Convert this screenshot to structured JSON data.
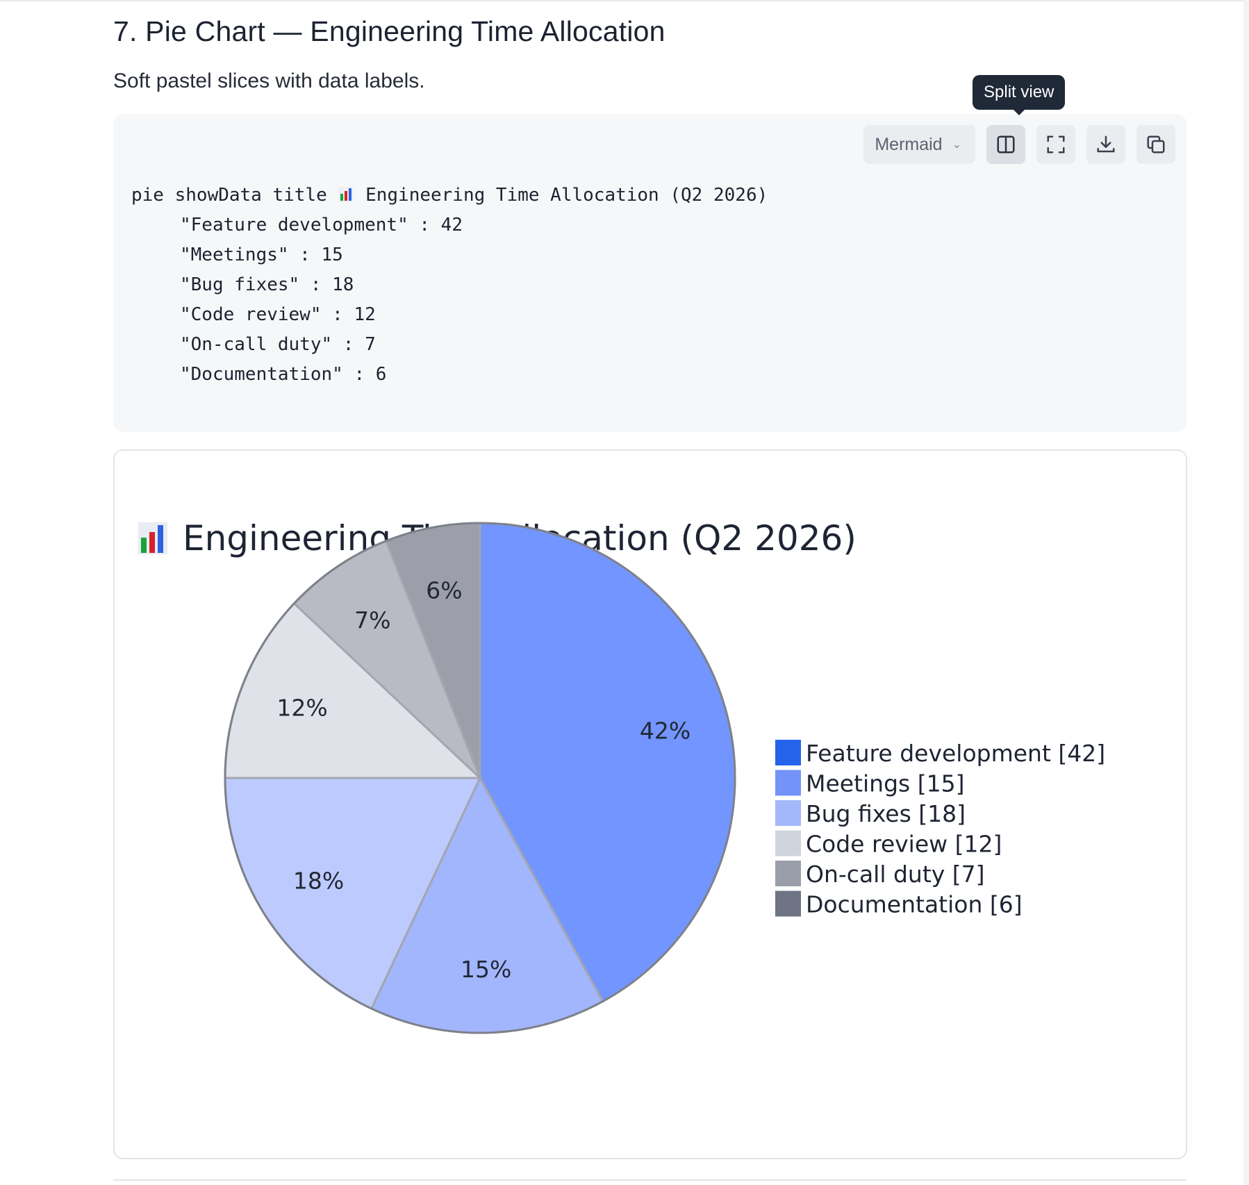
{
  "section": {
    "title": "7. Pie Chart — Engineering Time Allocation",
    "description": "Soft pastel slices with data labels."
  },
  "toolbar": {
    "language_select": "Mermaid",
    "tooltip": "Split view",
    "buttons": [
      {
        "icon": "split-view-icon",
        "active": true
      },
      {
        "icon": "fullscreen-icon",
        "active": false
      },
      {
        "icon": "download-icon",
        "active": false
      },
      {
        "icon": "copy-icon",
        "active": false
      }
    ]
  },
  "code": {
    "first_line_prefix": "pie showData title ",
    "first_line_suffix": " Engineering Time Allocation (Q2 2026)",
    "lines": [
      "\"Feature development\" : 42",
      "\"Meetings\" : 15",
      "\"Bug fixes\" : 18",
      "\"Code review\" : 12",
      "\"On-call duty\" : 7",
      "\"Documentation\" : 6"
    ]
  },
  "chart_data": {
    "type": "pie",
    "title": "Engineering Time Allocation (Q2 2026)",
    "title_icon": "bar-chart-emoji-icon",
    "show_data": true,
    "legend_position": "right",
    "slices": [
      {
        "label": "Feature development",
        "value": 42,
        "percent_label": "42%",
        "legend": "Feature development [42]",
        "color": "#7295ff",
        "legend_color": "#2563eb"
      },
      {
        "label": "Meetings",
        "value": 15,
        "percent_label": "15%",
        "legend": "Meetings [15]",
        "color": "#a2b6fe",
        "legend_color": "#7393f9"
      },
      {
        "label": "Bug fixes",
        "value": 18,
        "percent_label": "18%",
        "legend": "Bug fixes [18]",
        "color": "#bdcafd",
        "legend_color": "#a3b7fb"
      },
      {
        "label": "Code review",
        "value": 12,
        "percent_label": "12%",
        "legend": "Code review [12]",
        "color": "#dfe2e9",
        "legend_color": "#d0d4dd"
      },
      {
        "label": "On-call duty",
        "value": 7,
        "percent_label": "7%",
        "legend": "On-call duty [7]",
        "color": "#b8bbc4",
        "legend_color": "#9a9ea8"
      },
      {
        "label": "Documentation",
        "value": 6,
        "percent_label": "6%",
        "legend": "Documentation [6]",
        "color": "#9c9faa",
        "legend_color": "#6f7484"
      }
    ]
  }
}
